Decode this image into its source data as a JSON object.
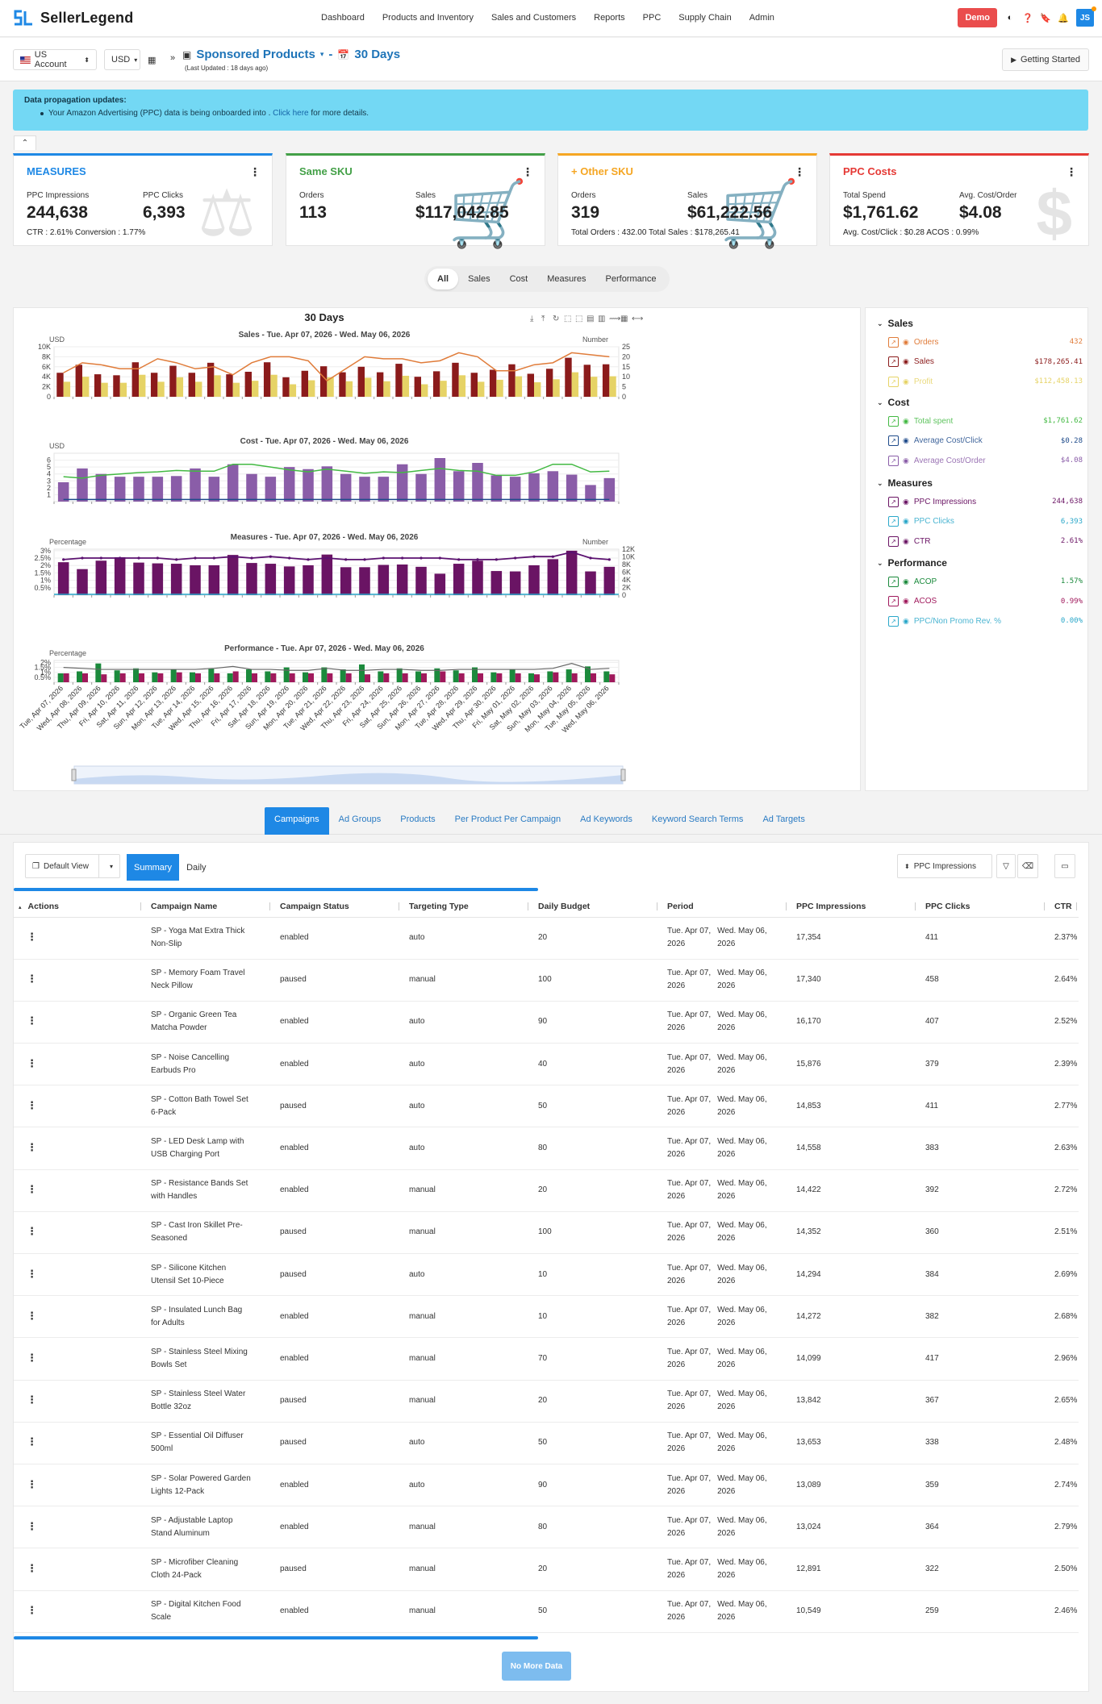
{
  "brand": {
    "name": "SellerLegend"
  },
  "topnav": [
    "Dashboard",
    "Products and Inventory",
    "Sales and Customers",
    "Reports",
    "PPC",
    "Supply Chain",
    "Admin"
  ],
  "topright": {
    "demo_label": "Demo",
    "avatar_initials": "JS"
  },
  "subbar": {
    "account": "US Account",
    "currency": "USD",
    "title": "Sponsored Products",
    "range": "30 Days",
    "last_updated": "(Last Updated : 18 days ago)",
    "getting_started": "Getting Started"
  },
  "alert": {
    "title": "Data propagation updates:",
    "text": "Your Amazon Advertising (PPC) data is being onboarded into .",
    "link": "Click here",
    "tail": " for more details."
  },
  "cards": [
    {
      "title": "MEASURES",
      "color": "#1e88e5",
      "l1": "PPC Impressions",
      "v1": "244,638",
      "l2": "PPC Clicks",
      "v2": "6,393",
      "foot": "CTR : 2.61% Conversion : 1.77%"
    },
    {
      "title": "Same SKU",
      "color": "#43a047",
      "l1": "Orders",
      "v1": "113",
      "l2": "Sales",
      "v2": "$117,042.85",
      "foot": ""
    },
    {
      "title": "+ Other SKU",
      "color": "#f5a623",
      "l1": "Orders",
      "v1": "319",
      "l2": "Sales",
      "v2": "$61,222.56",
      "foot": "Total Orders : 432.00 Total Sales : $178,265.41"
    },
    {
      "title": "PPC Costs",
      "color": "#e53935",
      "l1": "Total Spend",
      "v1": "$1,761.62",
      "l2": "Avg. Cost/Order",
      "v2": "$4.08",
      "foot": "Avg. Cost/Click : $0.28 ACOS : 0.99%"
    }
  ],
  "pills": [
    "All",
    "Sales",
    "Cost",
    "Measures",
    "Performance"
  ],
  "chart": {
    "title": "30 Days",
    "panels": [
      {
        "title": "Sales - Tue. Apr 07, 2026 - Wed. May 06, 2026",
        "ylabel": "USD",
        "y2label": "Number"
      },
      {
        "title": "Cost - Tue. Apr 07, 2026 - Wed. May 06, 2026",
        "ylabel": "USD",
        "y2label": ""
      },
      {
        "title": "Measures - Tue. Apr 07, 2026 - Wed. May 06, 2026",
        "ylabel": "Percentage",
        "y2label": "Number"
      },
      {
        "title": "Performance - Tue. Apr 07, 2026 - Wed. May 06, 2026",
        "ylabel": "Percentage",
        "y2label": ""
      }
    ]
  },
  "chart_data": {
    "type": "bar",
    "title": "30 Days",
    "x": [
      "Tue, Apr 07, 2026",
      "Wed, Apr 08, 2026",
      "Thu, Apr 09, 2026",
      "Fri, Apr 10, 2026",
      "Sat, Apr 11, 2026",
      "Sun, Apr 12, 2026",
      "Mon, Apr 13, 2026",
      "Tue, Apr 14, 2026",
      "Wed, Apr 15, 2026",
      "Thu, Apr 16, 2026",
      "Fri, Apr 17, 2026",
      "Sat, Apr 18, 2026",
      "Sun, Apr 19, 2026",
      "Mon, Apr 20, 2026",
      "Tue, Apr 21, 2026",
      "Wed, Apr 22, 2026",
      "Thu, Apr 23, 2026",
      "Fri, Apr 24, 2026",
      "Sat, Apr 25, 2026",
      "Sun, Apr 26, 2026",
      "Mon, Apr 27, 2026",
      "Tue, Apr 28, 2026",
      "Wed, Apr 29, 2026",
      "Thu, Apr 30, 2026",
      "Fri, May 01, 2026",
      "Sat, May 02, 2026",
      "Sun, May 03, 2026",
      "Mon, May 04, 2026",
      "Tue, May 05, 2026",
      "Wed, May 06, 2026"
    ],
    "sales": {
      "ylim": [
        0,
        10000
      ],
      "y2lim": [
        0,
        25
      ],
      "yticks": [
        "0",
        "2K",
        "4K",
        "6K",
        "8K",
        "10K"
      ],
      "y2ticks": [
        "0",
        "5",
        "10",
        "15",
        "20",
        "25"
      ],
      "sales": [
        4800,
        6400,
        4500,
        4300,
        6900,
        4800,
        6200,
        4800,
        6800,
        4500,
        5000,
        6900,
        3900,
        5200,
        6100,
        4900,
        6000,
        4900,
        6600,
        4000,
        5100,
        6800,
        4800,
        5400,
        6500,
        4600,
        5600,
        7800,
        6400,
        6500
      ],
      "profit": [
        3000,
        4000,
        2800,
        2800,
        4400,
        3000,
        3900,
        3000,
        4300,
        2800,
        3200,
        4400,
        2500,
        3300,
        3900,
        3100,
        3800,
        3100,
        4200,
        2500,
        3200,
        4300,
        3000,
        3400,
        4100,
        2900,
        3500,
        4900,
        4000,
        4100
      ],
      "orders": [
        12,
        17,
        16,
        14,
        14,
        19,
        17,
        14,
        15,
        11,
        17,
        20,
        20,
        18,
        8,
        14,
        20,
        19,
        19,
        17,
        18,
        22,
        20,
        13,
        13,
        16,
        17,
        22,
        21,
        20
      ]
    },
    "cost": {
      "ylim": [
        0,
        7
      ],
      "yticks": [
        "1",
        "2",
        "3",
        "4",
        "5",
        "6"
      ],
      "total_spent": [
        2.8,
        4.8,
        4.0,
        3.6,
        3.6,
        3.6,
        3.7,
        4.8,
        3.6,
        5.4,
        4.0,
        3.6,
        5.0,
        4.7,
        5.1,
        4.0,
        3.6,
        3.6,
        5.4,
        4.0,
        6.3,
        4.4,
        5.6,
        3.8,
        3.6,
        4.1,
        4.4,
        3.9,
        2.4,
        3.4
      ],
      "avg_cost_click": [
        0.3,
        0.3,
        0.3,
        0.3,
        0.3,
        0.3,
        0.3,
        0.3,
        0.3,
        0.3,
        0.3,
        0.3,
        0.3,
        0.3,
        0.3,
        0.3,
        0.3,
        0.3,
        0.3,
        0.3,
        0.3,
        0.3,
        0.3,
        0.3,
        0.3,
        0.3,
        0.3,
        0.3,
        0.3,
        0.3
      ],
      "avg_cost_order": [
        3.6,
        3.4,
        3.8,
        4.0,
        4.2,
        4.3,
        4.5,
        4.4,
        4.4,
        5.4,
        5.4,
        5.0,
        4.6,
        4.3,
        4.7,
        4.4,
        4.1,
        4.3,
        4.2,
        4.5,
        4.8,
        4.5,
        4.4,
        3.8,
        3.8,
        4.3,
        5.4,
        5.4,
        4.3,
        4.4
      ]
    },
    "measures": {
      "ylim": [
        0,
        3.0
      ],
      "y2lim": [
        0,
        12000
      ],
      "yticks": [
        "0.5%",
        "1%",
        "1.5%",
        "2%",
        "2.5%",
        "3%"
      ],
      "y2ticks": [
        "0",
        "2K",
        "4K",
        "6K",
        "8K",
        "10K",
        "12K"
      ],
      "impressions": [
        8600,
        6800,
        9000,
        9900,
        8500,
        8300,
        8200,
        7800,
        7800,
        10500,
        8400,
        8200,
        7500,
        7800,
        10600,
        7300,
        7300,
        7900,
        8000,
        7400,
        5600,
        8200,
        9000,
        6300,
        6200,
        7800,
        9400,
        11600,
        6200,
        7400
      ],
      "clicks": [
        200,
        200,
        230,
        250,
        200,
        220,
        210,
        190,
        200,
        280,
        220,
        210,
        180,
        200,
        280,
        190,
        190,
        200,
        210,
        190,
        150,
        210,
        230,
        160,
        160,
        200,
        250,
        300,
        160,
        190
      ],
      "ctr": [
        2.4,
        2.5,
        2.5,
        2.5,
        2.5,
        2.5,
        2.4,
        2.5,
        2.5,
        2.6,
        2.5,
        2.6,
        2.5,
        2.4,
        2.5,
        2.4,
        2.4,
        2.5,
        2.5,
        2.5,
        2.5,
        2.4,
        2.4,
        2.4,
        2.5,
        2.6,
        2.6,
        2.9,
        2.5,
        2.4
      ]
    },
    "performance": {
      "ylim": [
        0,
        2.2
      ],
      "yticks": [
        "0.5%",
        "1%",
        "1.5%",
        "2%"
      ],
      "acop": [
        0.9,
        1.1,
        1.9,
        1.2,
        1.4,
        1.0,
        1.3,
        1.0,
        1.4,
        0.9,
        1.3,
        1.1,
        1.5,
        1.0,
        1.5,
        1.3,
        1.8,
        1.1,
        1.4,
        1.1,
        1.4,
        1.2,
        1.5,
        1.0,
        1.3,
        0.9,
        1.1,
        1.3,
        1.6,
        1.1
      ],
      "acos": [
        0.9,
        0.9,
        0.8,
        0.9,
        0.9,
        0.9,
        1.0,
        0.9,
        0.9,
        1.1,
        0.9,
        0.9,
        0.9,
        0.9,
        0.9,
        0.9,
        0.8,
        0.9,
        0.9,
        0.9,
        1.1,
        0.9,
        0.9,
        0.9,
        0.9,
        0.8,
        1.0,
        0.9,
        0.9,
        0.8
      ],
      "ppc_non_promo": [
        1.5,
        1.4,
        1.3,
        1.3,
        1.3,
        1.3,
        1.3,
        1.3,
        1.4,
        1.6,
        1.3,
        1.3,
        1.2,
        1.2,
        1.4,
        1.2,
        1.2,
        1.3,
        1.3,
        1.2,
        1.2,
        1.3,
        1.3,
        1.3,
        1.3,
        1.3,
        1.4,
        1.9,
        1.3,
        1.4
      ]
    }
  },
  "legend": [
    {
      "group": "Sales",
      "items": [
        {
          "name": "Orders",
          "value": "432",
          "color": "#e07c3a",
          "on": true
        },
        {
          "name": "Sales",
          "value": "$178,265.41",
          "color": "#8b1b1b",
          "on": true
        },
        {
          "name": "Profit",
          "value": "$112,458.13",
          "color": "#e6d366",
          "on": false
        }
      ]
    },
    {
      "group": "Cost",
      "items": [
        {
          "name": "Total spent",
          "value": "$1,761.62",
          "color": "#43b943",
          "on": false
        },
        {
          "name": "Average Cost/Click",
          "value": "$0.28",
          "color": "#1e4a8a",
          "on": false
        },
        {
          "name": "Average Cost/Order",
          "value": "$4.08",
          "color": "#8a5da8",
          "on": false
        }
      ]
    },
    {
      "group": "Measures",
      "items": [
        {
          "name": "PPC Impressions",
          "value": "244,638",
          "color": "#6a1464",
          "on": true
        },
        {
          "name": "PPC Clicks",
          "value": "6,393",
          "color": "#2aa7c9",
          "on": false
        },
        {
          "name": "CTR",
          "value": "2.61%",
          "color": "#6a1464",
          "on": true
        }
      ]
    },
    {
      "group": "Performance",
      "items": [
        {
          "name": "ACOP",
          "value": "1.57%",
          "color": "#1b8a3c",
          "on": true
        },
        {
          "name": "ACOS",
          "value": "0.99%",
          "color": "#a0195c",
          "on": true
        },
        {
          "name": "PPC/Non Promo Rev. %",
          "value": "0.00%",
          "color": "#2aa7c9",
          "on": false
        }
      ]
    }
  ],
  "tabs": [
    "Campaigns",
    "Ad Groups",
    "Products",
    "Per Product Per Campaign",
    "Ad Keywords",
    "Keyword Search Terms",
    "Ad Targets"
  ],
  "table_toolbar": {
    "view": "Default View",
    "summary": "Summary",
    "daily": "Daily",
    "metric": "PPC Impressions"
  },
  "columns": [
    "Actions",
    "Campaign Name",
    "Campaign Status",
    "Targeting Type",
    "Daily Budget",
    "Period",
    "PPC Impressions",
    "PPC Clicks",
    "CTR"
  ],
  "rows": [
    {
      "name1": "SP - Yoga Mat Extra Thick",
      "name2": "Non-Slip",
      "status": "enabled",
      "targeting": "auto",
      "budget": "20",
      "impressions": "17,354",
      "clicks": "411",
      "ctr": "2.37%"
    },
    {
      "name1": "SP - Memory Foam Travel",
      "name2": "Neck Pillow",
      "status": "paused",
      "targeting": "manual",
      "budget": "100",
      "impressions": "17,340",
      "clicks": "458",
      "ctr": "2.64%"
    },
    {
      "name1": "SP - Organic Green Tea",
      "name2": "Matcha Powder",
      "status": "enabled",
      "targeting": "auto",
      "budget": "90",
      "impressions": "16,170",
      "clicks": "407",
      "ctr": "2.52%"
    },
    {
      "name1": "SP - Noise Cancelling",
      "name2": "Earbuds Pro",
      "status": "enabled",
      "targeting": "auto",
      "budget": "40",
      "impressions": "15,876",
      "clicks": "379",
      "ctr": "2.39%"
    },
    {
      "name1": "SP - Cotton Bath Towel Set",
      "name2": "6-Pack",
      "status": "paused",
      "targeting": "auto",
      "budget": "50",
      "impressions": "14,853",
      "clicks": "411",
      "ctr": "2.77%"
    },
    {
      "name1": "SP - LED Desk Lamp with",
      "name2": "USB Charging Port",
      "status": "enabled",
      "targeting": "auto",
      "budget": "80",
      "impressions": "14,558",
      "clicks": "383",
      "ctr": "2.63%"
    },
    {
      "name1": "SP - Resistance Bands Set",
      "name2": "with Handles",
      "status": "enabled",
      "targeting": "manual",
      "budget": "20",
      "impressions": "14,422",
      "clicks": "392",
      "ctr": "2.72%"
    },
    {
      "name1": "SP - Cast Iron Skillet Pre-",
      "name2": "Seasoned",
      "status": "paused",
      "targeting": "manual",
      "budget": "100",
      "impressions": "14,352",
      "clicks": "360",
      "ctr": "2.51%"
    },
    {
      "name1": "SP - Silicone Kitchen",
      "name2": "Utensil Set 10-Piece",
      "status": "paused",
      "targeting": "auto",
      "budget": "10",
      "impressions": "14,294",
      "clicks": "384",
      "ctr": "2.69%"
    },
    {
      "name1": "SP - Insulated Lunch Bag",
      "name2": "for Adults",
      "status": "enabled",
      "targeting": "manual",
      "budget": "10",
      "impressions": "14,272",
      "clicks": "382",
      "ctr": "2.68%"
    },
    {
      "name1": "SP - Stainless Steel Mixing",
      "name2": "Bowls Set",
      "status": "enabled",
      "targeting": "manual",
      "budget": "70",
      "impressions": "14,099",
      "clicks": "417",
      "ctr": "2.96%"
    },
    {
      "name1": "SP - Stainless Steel Water",
      "name2": "Bottle 32oz",
      "status": "paused",
      "targeting": "manual",
      "budget": "20",
      "impressions": "13,842",
      "clicks": "367",
      "ctr": "2.65%"
    },
    {
      "name1": "SP - Essential Oil Diffuser",
      "name2": "500ml",
      "status": "paused",
      "targeting": "auto",
      "budget": "50",
      "impressions": "13,653",
      "clicks": "338",
      "ctr": "2.48%"
    },
    {
      "name1": "SP - Solar Powered Garden",
      "name2": "Lights 12-Pack",
      "status": "enabled",
      "targeting": "auto",
      "budget": "90",
      "impressions": "13,089",
      "clicks": "359",
      "ctr": "2.74%"
    },
    {
      "name1": "SP - Adjustable Laptop",
      "name2": "Stand Aluminum",
      "status": "enabled",
      "targeting": "manual",
      "budget": "80",
      "impressions": "13,024",
      "clicks": "364",
      "ctr": "2.79%"
    },
    {
      "name1": "SP - Microfiber Cleaning",
      "name2": "Cloth 24-Pack",
      "status": "paused",
      "targeting": "manual",
      "budget": "20",
      "impressions": "12,891",
      "clicks": "322",
      "ctr": "2.50%"
    },
    {
      "name1": "SP - Digital Kitchen Food",
      "name2": "Scale",
      "status": "enabled",
      "targeting": "manual",
      "budget": "50",
      "impressions": "10,549",
      "clicks": "259",
      "ctr": "2.46%"
    }
  ],
  "period": {
    "from1": "Tue. Apr 07,",
    "from2": "2026",
    "to1": "Wed. May 06,",
    "to2": "2026"
  },
  "no_more": "No More Data"
}
